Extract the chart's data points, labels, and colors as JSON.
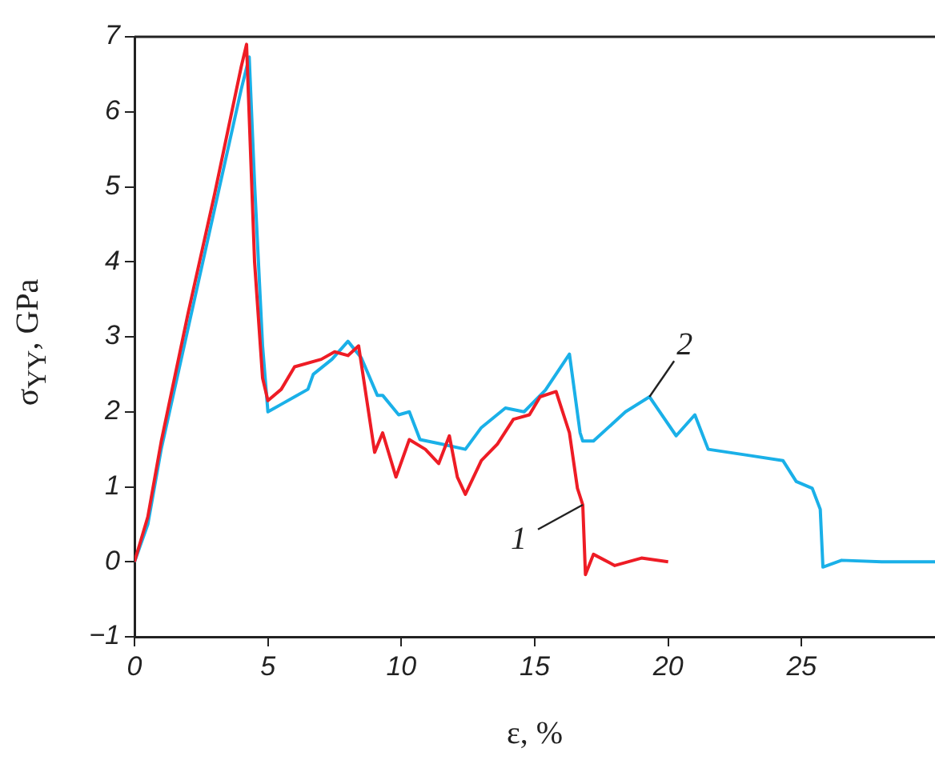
{
  "chart_data": {
    "type": "line",
    "xlabel": "ε, %",
    "ylabel": "σ$_{YY}$, GPa",
    "xlim": [
      0,
      30
    ],
    "xticks": [
      0,
      5,
      10,
      15,
      20,
      25
    ],
    "ylim": [
      -1,
      7
    ],
    "yticks": [
      {
        "value": -1,
        "label": "−1"
      },
      0,
      1,
      2,
      3,
      4,
      5,
      6,
      7
    ],
    "grid": false,
    "legend": false,
    "marker": "none",
    "line_style": "solid",
    "series": [
      {
        "color": "#ee1c25",
        "x": [
          0,
          0.5,
          1,
          2,
          3,
          4,
          4.2,
          4.5,
          4.8,
          5.0,
          5.5,
          6,
          7,
          7.5,
          8,
          8.4,
          9.0,
          9.3,
          9.8,
          10.3,
          10.9,
          11.4,
          11.8,
          12.1,
          12.4,
          13.0,
          13.6,
          14.2,
          14.8,
          15.2,
          15.8,
          16.3,
          16.6,
          16.8,
          16.9,
          17.2,
          18,
          19,
          20
        ],
        "values": [
          0,
          0.6,
          1.6,
          3.3,
          4.9,
          6.6,
          6.9,
          4.0,
          2.45,
          2.15,
          2.3,
          2.6,
          2.7,
          2.8,
          2.75,
          2.88,
          1.46,
          1.72,
          1.13,
          1.63,
          1.5,
          1.31,
          1.68,
          1.13,
          0.9,
          1.35,
          1.57,
          1.9,
          1.96,
          2.2,
          2.27,
          1.72,
          0.98,
          0.76,
          -0.17,
          0.1,
          -0.05,
          0.05,
          0
        ]
      },
      {
        "color": "#1ab0e8",
        "x": [
          0,
          0.5,
          1,
          2,
          3,
          4,
          4.3,
          4.5,
          4.8,
          5.0,
          5.5,
          6,
          6.5,
          6.7,
          7.4,
          8.0,
          8.5,
          9.1,
          9.3,
          9.9,
          10.3,
          10.7,
          11.5,
          12.4,
          13.0,
          13.9,
          14.6,
          15.4,
          16.3,
          16.7,
          16.8,
          17.2,
          18.4,
          19.3,
          20.3,
          21.0,
          21.5,
          23.0,
          24.3,
          24.8,
          25.4,
          25.7,
          25.8,
          26.5,
          28,
          30
        ],
        "values": [
          0,
          0.5,
          1.5,
          3.1,
          4.7,
          6.3,
          6.73,
          5.05,
          2.88,
          2.0,
          2.1,
          2.2,
          2.3,
          2.5,
          2.7,
          2.94,
          2.72,
          2.22,
          2.22,
          1.96,
          2.0,
          1.63,
          1.57,
          1.5,
          1.79,
          2.05,
          2.0,
          2.29,
          2.77,
          1.72,
          1.61,
          1.61,
          2.0,
          2.2,
          1.68,
          1.96,
          1.5,
          1.42,
          1.35,
          1.07,
          0.98,
          0.7,
          -0.07,
          0.02,
          0,
          0
        ]
      }
    ],
    "annotations": [
      {
        "text": "1",
        "x": 16.8,
        "y": 0.76
      },
      {
        "text": "2",
        "x": 19.3,
        "y": 2.2
      }
    ]
  }
}
